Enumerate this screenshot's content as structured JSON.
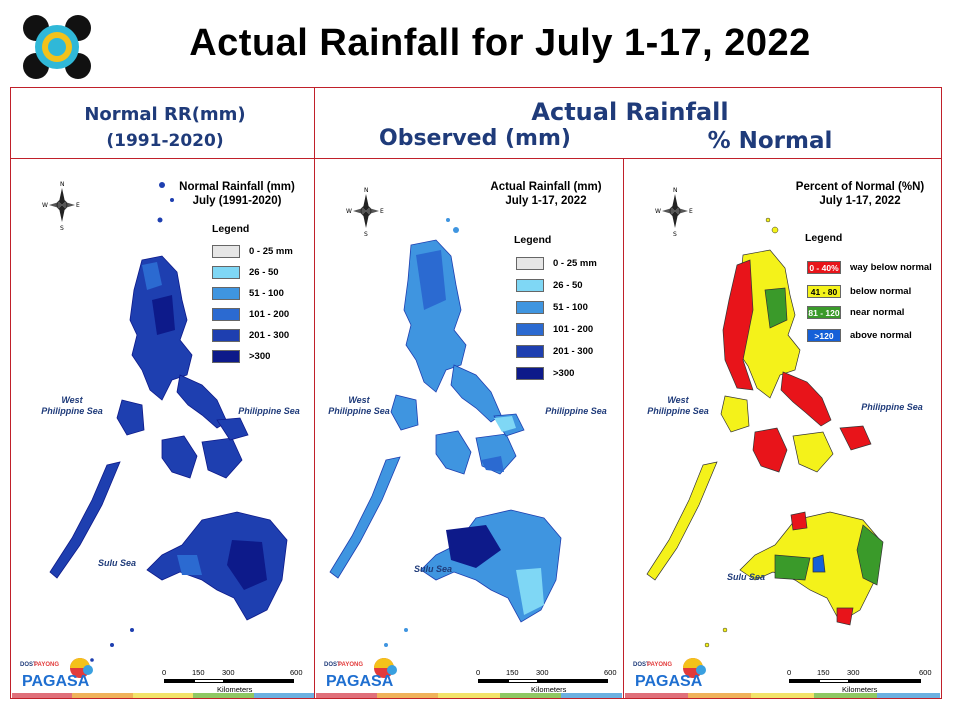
{
  "title": "Actual Rainfall for July 1-17, 2022",
  "headers": {
    "normal": "Normal RR(mm)",
    "normal_period": "(1991-2020)",
    "actual": "Actual Rainfall",
    "observed": "Observed (mm)",
    "percent": "% Normal"
  },
  "panels": [
    {
      "title_line1": "Normal Rainfall (mm)",
      "title_line2": "July (1991-2020)",
      "legend_title": "Legend",
      "legend": [
        {
          "label": "0 - 25 mm",
          "color": "#e6e6e6"
        },
        {
          "label": "26 - 50",
          "color": "#7fd7f5"
        },
        {
          "label": "51 - 100",
          "color": "#3f95e0"
        },
        {
          "label": "101 - 200",
          "color": "#2b6ad1"
        },
        {
          "label": "201 - 300",
          "color": "#1e3fb0"
        },
        {
          "label": ">300",
          "color": "#0d1a8a"
        }
      ]
    },
    {
      "title_line1": "Actual Rainfall (mm)",
      "title_line2": "July 1-17, 2022",
      "legend_title": "Legend",
      "legend": [
        {
          "label": "0 - 25 mm",
          "color": "#e6e6e6"
        },
        {
          "label": "26 - 50",
          "color": "#7fd7f5"
        },
        {
          "label": "51 - 100",
          "color": "#3f95e0"
        },
        {
          "label": "101 - 200",
          "color": "#2b6ad1"
        },
        {
          "label": "201 - 300",
          "color": "#1e3fb0"
        },
        {
          "label": ">300",
          "color": "#0d1a8a"
        }
      ]
    },
    {
      "title_line1": "Percent of Normal (%N)",
      "title_line2": "July 1-17, 2022",
      "legend_title": "Legend",
      "legend": [
        {
          "swatch": "0 - 40%",
          "label": "way below normal",
          "color": "#e8141a"
        },
        {
          "swatch": "41 - 80",
          "label": "below normal",
          "color": "#f4f21a"
        },
        {
          "swatch": "81 - 120",
          "label": "near normal",
          "color": "#3a9a2a"
        },
        {
          "swatch": ">120",
          "label": "above normal",
          "color": "#1560d8"
        }
      ]
    }
  ],
  "seas": {
    "west_line1": "West",
    "west_line2": "Philippine Sea",
    "east": "Philippine Sea",
    "sulu": "Sulu Sea"
  },
  "compass": {
    "n": "N",
    "e": "E",
    "s": "S",
    "w": "W"
  },
  "scale": {
    "ticks": [
      "0",
      "150",
      "300",
      "600"
    ],
    "unit": "Kilometers"
  },
  "branding": {
    "name": "PAGASA",
    "top": "DOST",
    "sub": "PAYONG"
  },
  "colors": {
    "frame": "#c0202a",
    "header_text": "#1f3b7a",
    "strip": [
      "#e0707a",
      "#f0b25a",
      "#f3e36a",
      "#8fc863",
      "#6cb0e0"
    ]
  }
}
